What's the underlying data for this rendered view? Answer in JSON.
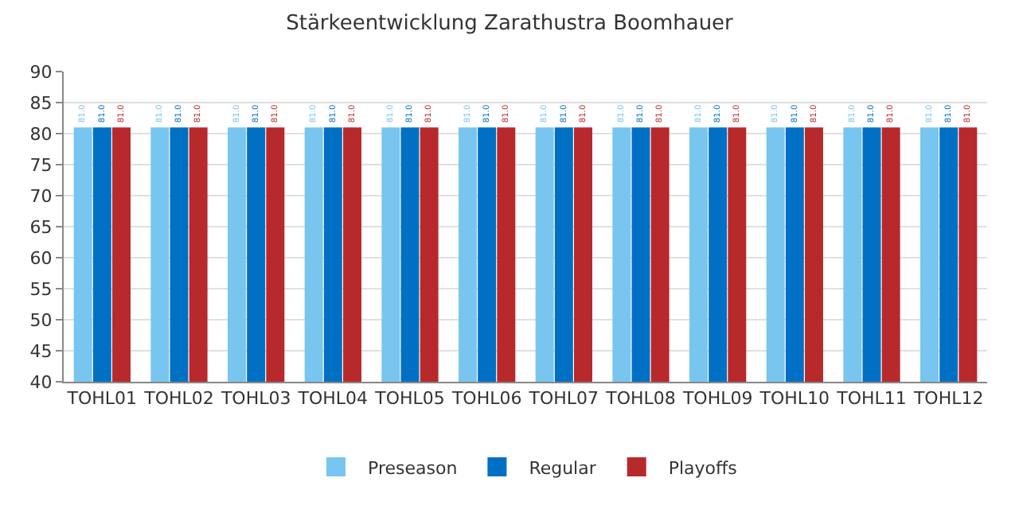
{
  "chart_data": {
    "type": "bar",
    "title": "Stärkeentwicklung Zarathustra Boomhauer",
    "categories": [
      "TOHL01",
      "TOHL02",
      "TOHL03",
      "TOHL04",
      "TOHL05",
      "TOHL06",
      "TOHL07",
      "TOHL08",
      "TOHL09",
      "TOHL10",
      "TOHL11",
      "TOHL12"
    ],
    "series": [
      {
        "name": "Preseason",
        "color": "#78c5f0",
        "values": [
          81,
          81,
          81,
          81,
          81,
          81,
          81,
          81,
          81,
          81,
          81,
          81
        ],
        "value_labels": [
          "81.0",
          "81.0",
          "81.0",
          "81.0",
          "81.0",
          "81.0",
          "81.0",
          "81.0",
          "81.0",
          "81.0",
          "81.0",
          "81.0"
        ]
      },
      {
        "name": "Regular",
        "color": "#0070c4",
        "values": [
          81,
          81,
          81,
          81,
          81,
          81,
          81,
          81,
          81,
          81,
          81,
          81
        ],
        "value_labels": [
          "81.0",
          "81.0",
          "81.0",
          "81.0",
          "81.0",
          "81.0",
          "81.0",
          "81.0",
          "81.0",
          "81.0",
          "81.0",
          "81.0"
        ]
      },
      {
        "name": "Playoffs",
        "color": "#b8292b",
        "values": [
          81,
          81,
          81,
          81,
          81,
          81,
          81,
          81,
          81,
          81,
          81,
          81
        ],
        "value_labels": [
          "81.0",
          "81.0",
          "81.0",
          "81.0",
          "81.0",
          "81.0",
          "81.0",
          "81.0",
          "81.0",
          "81.0",
          "81.0",
          "81.0"
        ]
      }
    ],
    "ylim": [
      40,
      90
    ],
    "yticks": [
      40,
      45,
      50,
      55,
      60,
      65,
      70,
      75,
      80,
      85,
      90
    ],
    "grid": "y",
    "legend": "bottom"
  }
}
